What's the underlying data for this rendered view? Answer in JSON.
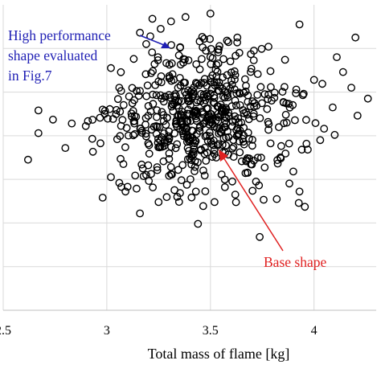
{
  "chart_data": {
    "type": "scatter",
    "xlabel": "Total mass of flame [kg]",
    "ylabel": "",
    "xlim": [
      2.5,
      4.3
    ],
    "ylim": [
      0,
      7
    ],
    "x_ticks": [
      2.5,
      3,
      3.5,
      4
    ],
    "x_tick_labels": [
      "2.5",
      "3",
      "3.5",
      "4"
    ],
    "grid": true,
    "marker": "open-circle",
    "colors": {
      "marker": "#000000",
      "grid": "#d9d9d9",
      "annotation_blue": "#1f1fb4",
      "annotation_red": "#e02020"
    },
    "annotations": [
      {
        "lines": [
          "High performance",
          "shape evaluated",
          "in Fig.7"
        ],
        "color": "#1f1fb4",
        "target": {
          "x": 3.16,
          "y": 6.36
        }
      },
      {
        "text": "Base shape",
        "color": "#e02020",
        "target": {
          "x": 3.46,
          "y": 4.56
        }
      }
    ],
    "highlight_points": [
      {
        "x": 3.16,
        "y": 6.36
      },
      {
        "x": 3.46,
        "y": 4.56
      }
    ],
    "cluster": {
      "center": [
        3.45,
        4.4
      ],
      "spread": [
        0.21,
        1.05
      ],
      "count": 560,
      "seed": 7
    },
    "points": [
      [
        2.62,
        3.45
      ],
      [
        2.67,
        4.58
      ],
      [
        2.67,
        4.06
      ],
      [
        2.74,
        4.37
      ],
      [
        2.8,
        3.72
      ],
      [
        2.93,
        3.93
      ],
      [
        2.98,
        4.6
      ],
      [
        2.99,
        4.5
      ],
      [
        2.98,
        2.58
      ],
      [
        3.05,
        3.92
      ],
      [
        3.02,
        3.05
      ],
      [
        3.06,
        2.92
      ],
      [
        3.09,
        2.72
      ],
      [
        3.1,
        2.83
      ],
      [
        3.16,
        2.22
      ],
      [
        3.44,
        1.98
      ],
      [
        3.52,
        2.48
      ],
      [
        3.25,
        2.48
      ],
      [
        3.62,
        2.65
      ],
      [
        3.68,
        3.15
      ],
      [
        3.82,
        2.55
      ],
      [
        3.93,
        2.72
      ],
      [
        3.97,
        3.68
      ],
      [
        4.03,
        3.9
      ],
      [
        4.1,
        4.02
      ],
      [
        4.21,
        4.46
      ],
      [
        4.26,
        4.85
      ],
      [
        4.18,
        5.1
      ],
      [
        4.14,
        5.46
      ],
      [
        4.11,
        5.8
      ],
      [
        4.2,
        6.25
      ],
      [
        3.93,
        6.55
      ],
      [
        3.78,
        6.04
      ],
      [
        3.63,
        6.25
      ],
      [
        3.5,
        6.8
      ],
      [
        3.42,
        7.08
      ],
      [
        3.38,
        6.72
      ],
      [
        3.31,
        6.62
      ],
      [
        3.33,
        6.95
      ],
      [
        3.22,
        6.68
      ],
      [
        3.13,
        5.76
      ],
      [
        3.02,
        5.55
      ],
      [
        3.06,
        5.1
      ],
      [
        3.95,
        4.96
      ],
      [
        4.04,
        5.19
      ],
      [
        3.88,
        3.82
      ],
      [
        3.71,
        3.43
      ],
      [
        3.57,
        2.82
      ],
      [
        3.19,
        3.1
      ],
      [
        3.08,
        3.35
      ],
      [
        4.09,
        4.65
      ],
      [
        4.0,
        5.28
      ],
      [
        3.79,
        5.48
      ],
      [
        3.86,
        5.74
      ],
      [
        3.71,
        5.95
      ],
      [
        3.21,
        6.28
      ],
      [
        3.26,
        6.45
      ],
      [
        3.54,
        5.98
      ],
      [
        3.58,
        6.18
      ],
      [
        3.47,
        6.22
      ],
      [
        3.72,
        2.95
      ],
      [
        3.34,
        2.6
      ],
      [
        3.36,
        2.98
      ],
      [
        3.43,
        2.72
      ],
      [
        3.9,
        3.18
      ]
    ]
  }
}
